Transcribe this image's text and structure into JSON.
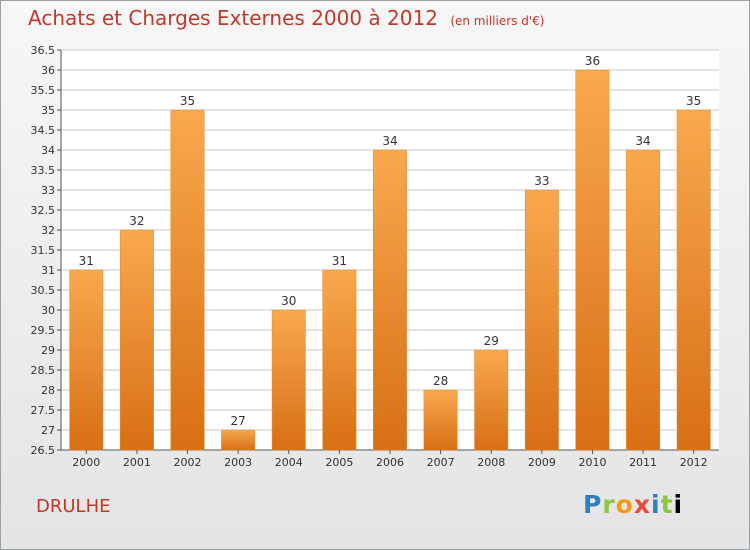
{
  "header": {
    "title": "Achats et Charges Externes 2000 à 2012",
    "subtitle": "(en milliers d'€)"
  },
  "footer": {
    "place": "DRULHE",
    "brand_letters": [
      "P",
      "r",
      "o",
      "x",
      "i",
      "t",
      "i"
    ]
  },
  "colors": {
    "bar_light": "#f9a84e",
    "bar_dark": "#d86f14",
    "title": "#c0392b",
    "grid": "#c8c8c8"
  },
  "chart_data": {
    "type": "bar",
    "title": "Achats et Charges Externes 2000 à 2012",
    "subtitle": "(en milliers d'€)",
    "xlabel": "",
    "ylabel": "",
    "categories": [
      "2000",
      "2001",
      "2002",
      "2003",
      "2004",
      "2005",
      "2006",
      "2007",
      "2008",
      "2009",
      "2010",
      "2011",
      "2012"
    ],
    "values": [
      31,
      32,
      35,
      27,
      30,
      31,
      34,
      28,
      29,
      33,
      36,
      34,
      35
    ],
    "value_labels": [
      "31",
      "32",
      "35",
      "27",
      "30",
      "31",
      "34",
      "28",
      "29",
      "33",
      "36",
      "34",
      "35"
    ],
    "ylim": [
      26.5,
      36.5
    ],
    "yticks": [
      "26.5",
      "27",
      "27.5",
      "28",
      "28.5",
      "29",
      "29.5",
      "30",
      "30.5",
      "31",
      "31.5",
      "32",
      "32.5",
      "33",
      "33.5",
      "34",
      "34.5",
      "35",
      "35.5",
      "36",
      "36.5"
    ],
    "grid": true
  }
}
